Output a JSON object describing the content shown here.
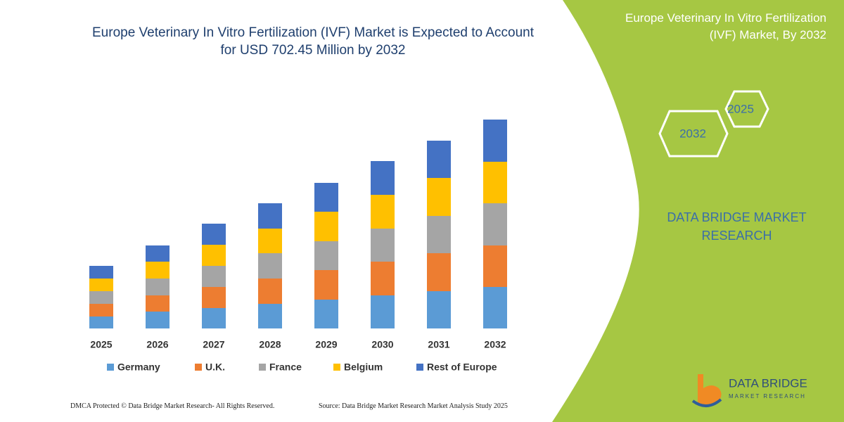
{
  "chart_data": {
    "type": "stacked-bar",
    "title": "Europe Veterinary In Vitro Fertilization (IVF) Market is Expected to Account for USD 702.45 Million by 2032",
    "categories": [
      "2025",
      "2026",
      "2027",
      "2028",
      "2029",
      "2030",
      "2031",
      "2032"
    ],
    "series": [
      {
        "name": "Germany",
        "color": "#5b9bd5",
        "values": [
          17,
          24,
          29,
          35,
          41,
          47,
          53,
          59
        ]
      },
      {
        "name": "U.K.",
        "color": "#ed7d31",
        "values": [
          18,
          23,
          30,
          36,
          42,
          48,
          54,
          59
        ]
      },
      {
        "name": "France",
        "color": "#a5a5a5",
        "values": [
          18,
          24,
          30,
          36,
          41,
          47,
          53,
          60
        ]
      },
      {
        "name": "Belgium",
        "color": "#ffc000",
        "values": [
          18,
          24,
          30,
          35,
          42,
          48,
          54,
          59
        ]
      },
      {
        "name": "Rest of Europe",
        "color": "#4472c4",
        "values": [
          18,
          23,
          30,
          36,
          41,
          48,
          53,
          60
        ]
      }
    ]
  },
  "panel": {
    "title": "Europe Veterinary In Vitro Fertilization (IVF) Market, By 2032",
    "hexagons": [
      "2025",
      "2032"
    ],
    "brand": "DATA BRIDGE MARKET RESEARCH"
  },
  "footer": {
    "copyright": "DMCA Protected © Data Bridge Market Research-  All Rights Reserved.",
    "source": "Source: Data Bridge Market Research  Market Analysis Study 2025"
  },
  "logo": {
    "name": "DATA BRIDGE",
    "tagline": "MARKET RESEARCH"
  }
}
